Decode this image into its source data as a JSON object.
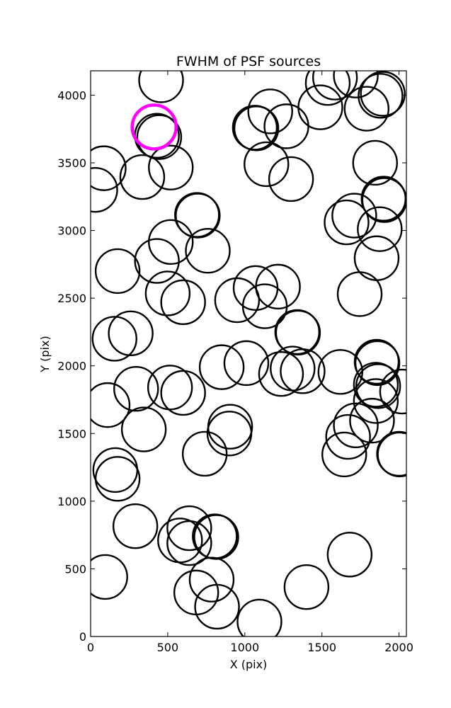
{
  "chart_data": {
    "type": "scatter",
    "title": "FWHM of PSF sources",
    "xlabel": "X (pix)",
    "ylabel": "Y (pix)",
    "xlim": [
      0,
      2048
    ],
    "ylim": [
      0,
      4180
    ],
    "x_ticks": [
      0,
      500,
      1000,
      1500,
      2000
    ],
    "y_ticks": [
      0,
      500,
      1000,
      1500,
      2000,
      2500,
      3000,
      3500,
      4000
    ],
    "grid": false,
    "marker": "open circle",
    "marker_color": "#000000",
    "highlight_color": "#ff00ff",
    "highlighted_source": {
      "x": 412,
      "y": 3765
    },
    "points": [
      {
        "x": 457,
        "y": 4110
      },
      {
        "x": 1538,
        "y": 4090
      },
      {
        "x": 1585,
        "y": 4130
      },
      {
        "x": 1720,
        "y": 4145
      },
      {
        "x": 1490,
        "y": 3910
      },
      {
        "x": 1790,
        "y": 3900
      },
      {
        "x": 1880,
        "y": 3995
      },
      {
        "x": 1895,
        "y": 4010
      },
      {
        "x": 1165,
        "y": 3880
      },
      {
        "x": 1270,
        "y": 3770
      },
      {
        "x": 1065,
        "y": 3760
      },
      {
        "x": 1075,
        "y": 3755
      },
      {
        "x": 1140,
        "y": 3490
      },
      {
        "x": 1300,
        "y": 3380
      },
      {
        "x": 85,
        "y": 3460
      },
      {
        "x": 30,
        "y": 3300
      },
      {
        "x": 335,
        "y": 3395
      },
      {
        "x": 520,
        "y": 3465
      },
      {
        "x": 430,
        "y": 3700
      },
      {
        "x": 445,
        "y": 3690
      },
      {
        "x": 1845,
        "y": 3500
      },
      {
        "x": 1900,
        "y": 3235
      },
      {
        "x": 1905,
        "y": 3225
      },
      {
        "x": 1710,
        "y": 3110
      },
      {
        "x": 1660,
        "y": 3060
      },
      {
        "x": 1875,
        "y": 3010
      },
      {
        "x": 1855,
        "y": 2795
      },
      {
        "x": 1745,
        "y": 2530
      },
      {
        "x": 690,
        "y": 3115
      },
      {
        "x": 695,
        "y": 3110
      },
      {
        "x": 520,
        "y": 2915
      },
      {
        "x": 760,
        "y": 2850
      },
      {
        "x": 430,
        "y": 2775
      },
      {
        "x": 175,
        "y": 2700
      },
      {
        "x": 1215,
        "y": 2585
      },
      {
        "x": 1070,
        "y": 2575
      },
      {
        "x": 950,
        "y": 2485
      },
      {
        "x": 1130,
        "y": 2440
      },
      {
        "x": 500,
        "y": 2535
      },
      {
        "x": 600,
        "y": 2470
      },
      {
        "x": 260,
        "y": 2240
      },
      {
        "x": 155,
        "y": 2200
      },
      {
        "x": 1340,
        "y": 2250
      },
      {
        "x": 1345,
        "y": 2245
      },
      {
        "x": 850,
        "y": 1990
      },
      {
        "x": 1010,
        "y": 2020
      },
      {
        "x": 1620,
        "y": 1955
      },
      {
        "x": 1310,
        "y": 1980
      },
      {
        "x": 1235,
        "y": 1940
      },
      {
        "x": 1375,
        "y": 1960
      },
      {
        "x": 1855,
        "y": 2030
      },
      {
        "x": 1860,
        "y": 2020
      },
      {
        "x": 1850,
        "y": 1860
      },
      {
        "x": 1865,
        "y": 1850
      },
      {
        "x": 2020,
        "y": 1810
      },
      {
        "x": 1850,
        "y": 1740
      },
      {
        "x": 295,
        "y": 1830
      },
      {
        "x": 515,
        "y": 1840
      },
      {
        "x": 600,
        "y": 1800
      },
      {
        "x": 110,
        "y": 1710
      },
      {
        "x": 1825,
        "y": 1595
      },
      {
        "x": 1720,
        "y": 1560
      },
      {
        "x": 1670,
        "y": 1475
      },
      {
        "x": 1645,
        "y": 1345
      },
      {
        "x": 2000,
        "y": 1350
      },
      {
        "x": 2005,
        "y": 1345
      },
      {
        "x": 345,
        "y": 1530
      },
      {
        "x": 905,
        "y": 1550
      },
      {
        "x": 900,
        "y": 1500
      },
      {
        "x": 740,
        "y": 1350
      },
      {
        "x": 160,
        "y": 1230
      },
      {
        "x": 175,
        "y": 1165
      },
      {
        "x": 290,
        "y": 815
      },
      {
        "x": 640,
        "y": 800
      },
      {
        "x": 640,
        "y": 690
      },
      {
        "x": 580,
        "y": 710
      },
      {
        "x": 815,
        "y": 735
      },
      {
        "x": 805,
        "y": 740
      },
      {
        "x": 1680,
        "y": 605
      },
      {
        "x": 95,
        "y": 440
      },
      {
        "x": 785,
        "y": 420
      },
      {
        "x": 685,
        "y": 325
      },
      {
        "x": 820,
        "y": 220
      },
      {
        "x": 1400,
        "y": 365
      },
      {
        "x": 1095,
        "y": 110
      }
    ]
  }
}
